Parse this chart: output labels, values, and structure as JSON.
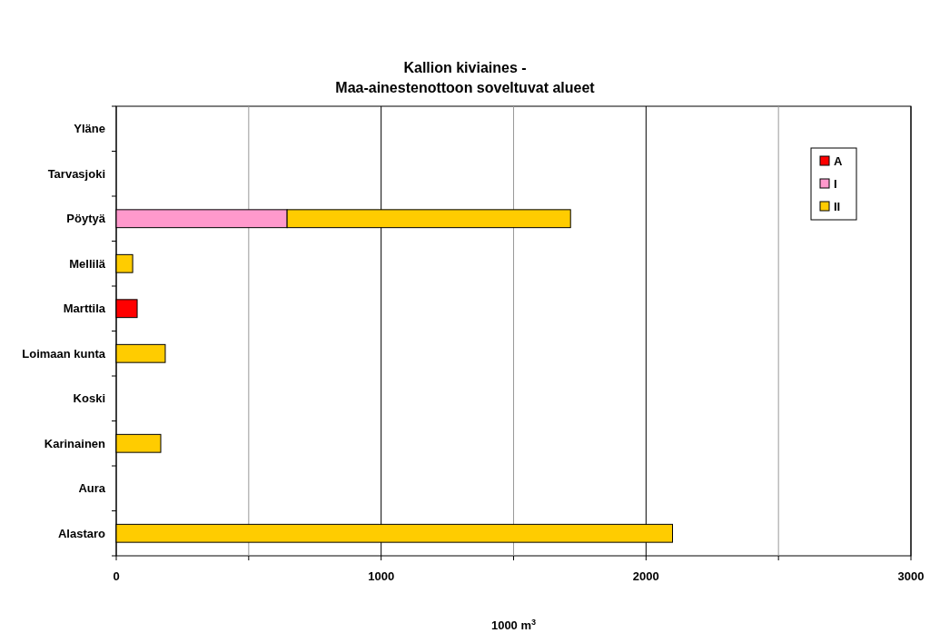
{
  "chart_data": {
    "type": "bar",
    "title": "Kallion kiviaines -\nMaa-ainestenottoon soveltuvat alueet",
    "xlabel": "1000 m$^{3}$",
    "orientation": "horizontal",
    "stacked": true,
    "categories": [
      "Yläne",
      "Tarvasjoki",
      "Pöytyä",
      "Mellilä",
      "Marttila",
      "Loimaan kunta",
      "Koski",
      "Karinainen",
      "Aura",
      "Alastaro"
    ],
    "series": [
      {
        "name": "A",
        "color": "#ff0000",
        "values": [
          null,
          null,
          null,
          null,
          79,
          null,
          null,
          null,
          null,
          null
        ]
      },
      {
        "name": "I",
        "color": "#ff99cc",
        "values": [
          null,
          null,
          645,
          null,
          null,
          null,
          null,
          null,
          null,
          null
        ]
      },
      {
        "name": "II",
        "color": "#ffcc00",
        "values": [
          null,
          null,
          1070,
          62,
          null,
          185,
          null,
          168,
          null,
          2100
        ]
      }
    ],
    "xlim": [
      0,
      3000
    ],
    "xticks": [
      0,
      {
        "value": 500,
        "label": null
      },
      1000,
      {
        "value": 1500,
        "label": null
      },
      2000,
      {
        "value": 2500,
        "label": null
      },
      3000
    ],
    "grid": "x",
    "legend": "top right"
  }
}
